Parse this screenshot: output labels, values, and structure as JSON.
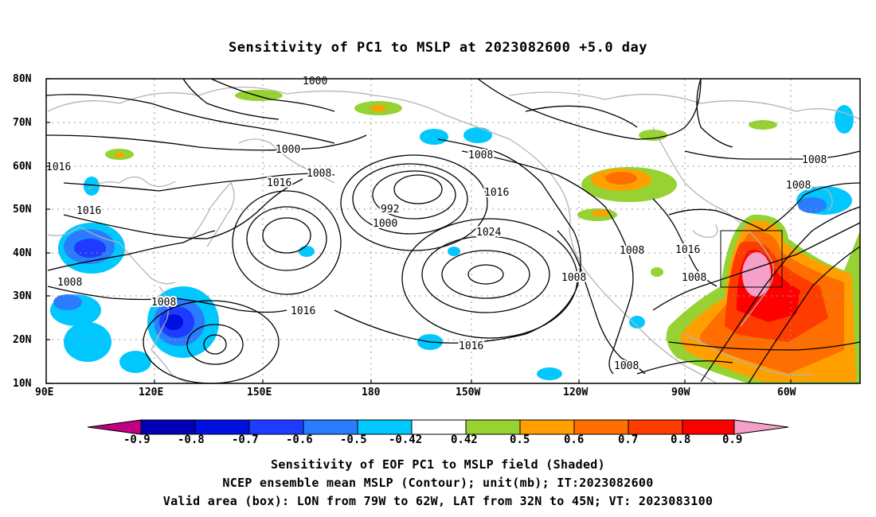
{
  "title": "Sensitivity of PC1 to MSLP at 2023082600 +5.0 day",
  "map": {
    "lat_labels": [
      "80N",
      "70N",
      "60N",
      "50N",
      "40N",
      "30N",
      "20N",
      "10N"
    ],
    "lon_labels": [
      "90E",
      "120E",
      "150E",
      "180",
      "150W",
      "120W",
      "90W",
      "60W"
    ],
    "extent": {
      "lon_west": "90E",
      "lon_east": "45W",
      "lat_south": "10N",
      "lat_north": "80N"
    },
    "contour_labels": [
      "1000",
      "1000",
      "1000",
      "992",
      "1008",
      "1008",
      "1008",
      "1016",
      "1016",
      "1016",
      "1016",
      "1024",
      "1008",
      "1016",
      "1016",
      "1008",
      "1008",
      "1008",
      "1008",
      "1016",
      "1008",
      "1008"
    ],
    "validation_box": {
      "lon_from": "79W",
      "lon_to": "62W",
      "lat_from": "32N",
      "lat_to": "45N"
    }
  },
  "colorbar": {
    "labels": [
      "-0.9",
      "-0.8",
      "-0.7",
      "-0.6",
      "-0.5",
      "-0.42",
      "0.42",
      "0.5",
      "0.6",
      "0.7",
      "0.8",
      "0.9"
    ],
    "colors": [
      "#c0007f",
      "#0000b4",
      "#0010e0",
      "#1e3cff",
      "#2a7cff",
      "#00c8ff",
      "#ffffff",
      "#96d232",
      "#ffa000",
      "#ff6e00",
      "#ff3c00",
      "#ff0000",
      "#f5a0c8"
    ]
  },
  "captions": {
    "line1": "Sensitivity of EOF PC1 to MSLP field (Shaded)",
    "line2": "NCEP ensemble mean MSLP (Contour); unit(mb); IT:2023082600",
    "line3": "Valid area (box): LON from 79W to 62W, LAT from 32N to 45N; VT: 2023083100"
  }
}
